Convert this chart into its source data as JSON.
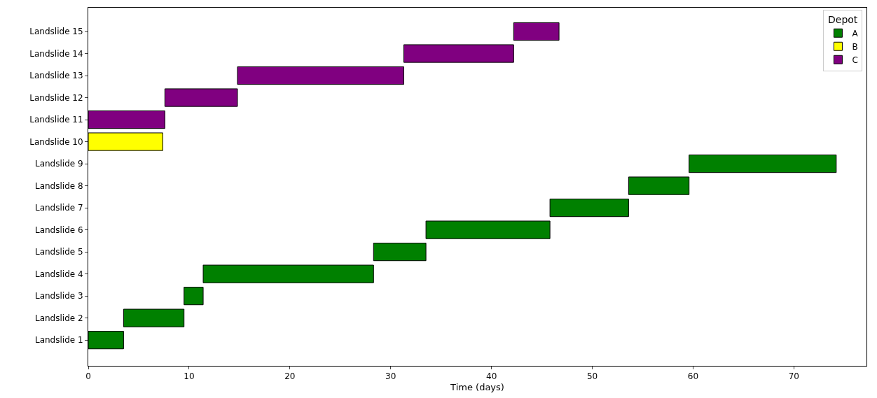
{
  "chart_data": {
    "type": "bar",
    "orientation": "horizontal",
    "xlabel": "Time (days)",
    "legend_title": "Depot",
    "legend": "top right",
    "grid": false,
    "categories": [
      "Landslide 15",
      "Landslide 14",
      "Landslide 13",
      "Landslide 12",
      "Landslide 11",
      "Landslide 10",
      "Landslide 9",
      "Landslide 8",
      "Landslide 7",
      "Landslide 6",
      "Landslide 5",
      "Landslide 4",
      "Landslide 3",
      "Landslide 2",
      "Landslide 1"
    ],
    "xlim": [
      0,
      77.2
    ],
    "xticks": [
      0,
      10,
      20,
      30,
      40,
      50,
      60,
      70
    ],
    "series": [
      {
        "name": "A",
        "color": "#008000",
        "base": [
          null,
          null,
          null,
          null,
          null,
          null,
          59.6,
          53.6,
          45.8,
          33.5,
          28.3,
          11.4,
          9.5,
          3.5,
          0
        ],
        "values": [
          null,
          null,
          null,
          null,
          null,
          null,
          14.6,
          6.0,
          7.8,
          12.3,
          5.2,
          16.9,
          1.9,
          6.0,
          3.5
        ]
      },
      {
        "name": "B",
        "color": "#ffff00",
        "base": [
          null,
          null,
          null,
          null,
          null,
          0,
          null,
          null,
          null,
          null,
          null,
          null,
          null,
          null,
          null
        ],
        "values": [
          null,
          null,
          null,
          null,
          null,
          7.4,
          null,
          null,
          null,
          null,
          null,
          null,
          null,
          null,
          null
        ]
      },
      {
        "name": "C",
        "color": "#800080",
        "base": [
          42.2,
          31.3,
          14.8,
          7.6,
          0,
          null,
          null,
          null,
          null,
          null,
          null,
          null,
          null,
          null,
          null
        ],
        "values": [
          4.5,
          10.9,
          16.5,
          7.2,
          7.6,
          null,
          null,
          null,
          null,
          null,
          null,
          null,
          null,
          null,
          null
        ]
      }
    ]
  }
}
